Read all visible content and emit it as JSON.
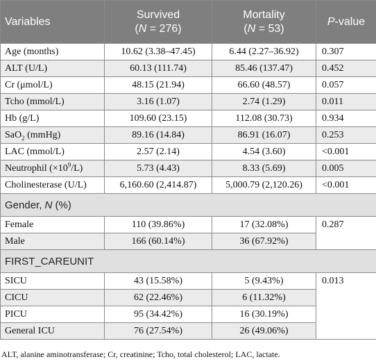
{
  "header": {
    "variables": "Variables",
    "survived_line1": "Survived",
    "survived_line2_prefix": "(",
    "survived_n": "N",
    "survived_line2_suffix": " = 276)",
    "mortality_line1": "Mortality",
    "mortality_line2_prefix": "(",
    "mortality_n": "N",
    "mortality_line2_suffix": " = 53)",
    "pvalue_italic": "P",
    "pvalue_rest": "-value"
  },
  "rows": [
    {
      "label": "Age (months)",
      "survived": "10.62 (3.38–47.45)",
      "mortality": "6.44 (2.27–36.92)",
      "p": "0.307"
    },
    {
      "label": "ALT (U/L)",
      "survived": "60.13 (111.74)",
      "mortality": "85.46 (137.47)",
      "p": "0.452"
    },
    {
      "label": "Cr (μmol/L)",
      "survived": "48.15 (21.94)",
      "mortality": "66.60 (48.57)",
      "p": "0.057"
    },
    {
      "label": "Tcho (mmol/L)",
      "survived": "3.16 (1.07)",
      "mortality": "2.74 (1.29)",
      "p": "0.011"
    },
    {
      "label": "Hb (g/L)",
      "survived": "109.60 (23.15)",
      "mortality": "112.08 (30.73)",
      "p": "0.934"
    },
    {
      "label_pre": "SaO",
      "label_sub": "2",
      "label_post": " (mmHg)",
      "survived": "89.16 (14.84)",
      "mortality": "86.91 (16.07)",
      "p": "0.253"
    },
    {
      "label": "LAC (mmol/L)",
      "survived": "2.57 (2.14)",
      "mortality": "4.54 (3.60)",
      "p": "<0.001"
    },
    {
      "label_pre": "Neutrophil (×10",
      "label_sup": "9",
      "label_post": "/L)",
      "survived": "5.73 (4.43)",
      "mortality": "8.33 (5.69)",
      "p": "0.005"
    },
    {
      "label": "Cholinesterase (U/L)",
      "survived": "6,160.60 (2,414.87)",
      "mortality": "5,000.79 (2,120.26)",
      "p": "<0.001"
    }
  ],
  "gender": {
    "section_pre": "Gender, ",
    "section_n": "N",
    "section_post": " (%)",
    "rows": [
      {
        "label": "Female",
        "survived": "110 (39.86%)",
        "mortality": "17 (32.08%)"
      },
      {
        "label": "Male",
        "survived": "166 (60.14%)",
        "mortality": "36 (67.92%)"
      }
    ],
    "p": "0.287"
  },
  "careunit": {
    "section": "FIRST_CAREUNIT",
    "rows": [
      {
        "label": "SICU",
        "survived": "43 (15.58%)",
        "mortality": "5 (9.43%)"
      },
      {
        "label": "CICU",
        "survived": "62 (22.46%)",
        "mortality": "6 (11.32%)"
      },
      {
        "label": "PICU",
        "survived": "95 (34.42%)",
        "mortality": "16 (30.19%)"
      },
      {
        "label": "General ICU",
        "survived": "76 (27.54%)",
        "mortality": "26 (49.06%)"
      }
    ],
    "p": "0.013"
  },
  "footnote": "ALT, alanine aminotransferase; Cr, creatinine; Tcho, total cholesterol; LAC, lactate."
}
